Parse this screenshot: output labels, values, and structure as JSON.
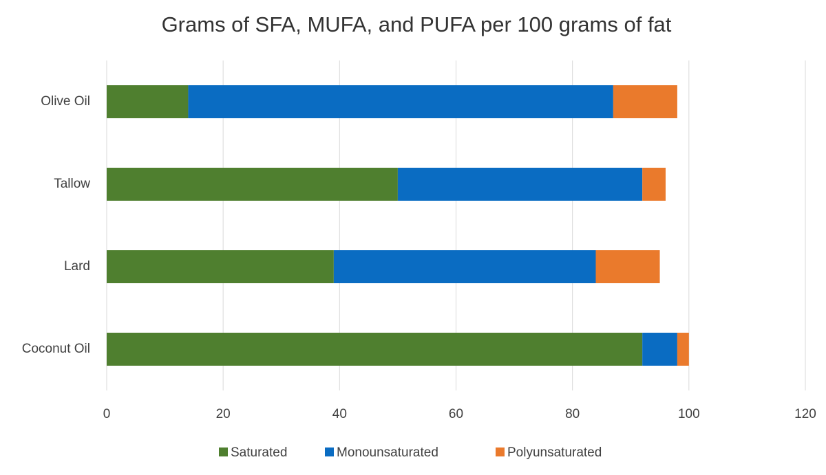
{
  "chart_data": {
    "type": "bar",
    "orientation": "horizontal",
    "stacked": true,
    "title": "Grams of SFA, MUFA, and PUFA per 100 grams of fat",
    "categories": [
      "Olive Oil",
      "Tallow",
      "Lard",
      "Coconut Oil"
    ],
    "series": [
      {
        "name": "Saturated",
        "color": "#4f7f2f",
        "values": [
          14,
          50,
          39,
          92
        ]
      },
      {
        "name": "Monounsaturated",
        "color": "#0a6cc2",
        "values": [
          73,
          42,
          45,
          6
        ]
      },
      {
        "name": "Polyunsaturated",
        "color": "#ea7a2c",
        "values": [
          11,
          4,
          11,
          2
        ]
      }
    ],
    "xlim": [
      0,
      120
    ],
    "xticks": [
      0,
      20,
      40,
      60,
      80,
      100,
      120
    ],
    "grid": true,
    "legend": "bottom"
  }
}
